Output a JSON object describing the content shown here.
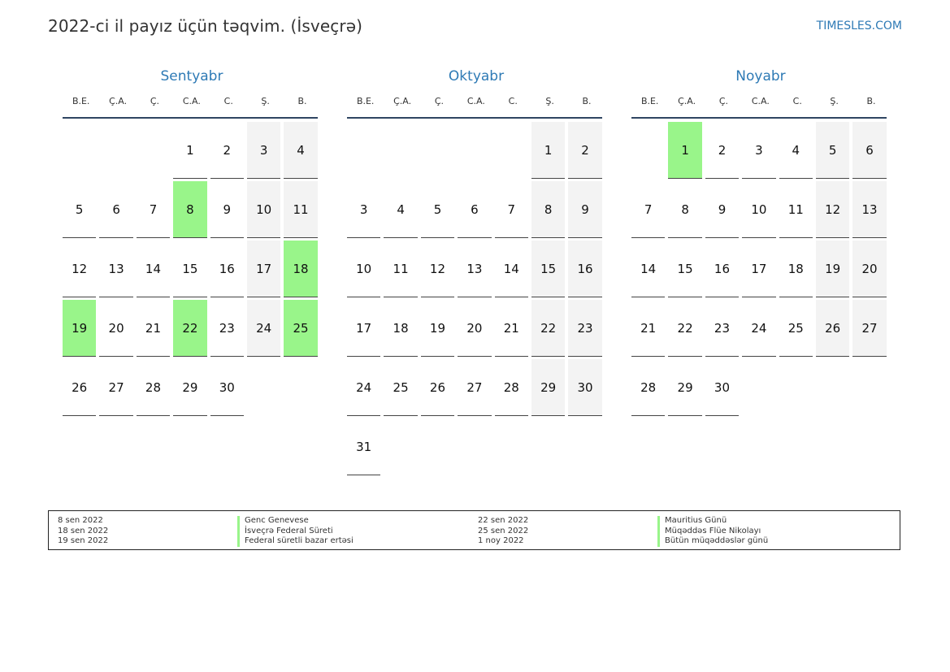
{
  "header": {
    "title": "2022-ci il payız üçün təqvim. (İsveçrə)",
    "brand": "TIMESLES.COM"
  },
  "weekday_headers": [
    "B.E.",
    "Ç.A.",
    "Ç.",
    "C.A.",
    "C.",
    "Ş.",
    "B."
  ],
  "months": [
    {
      "name": "Sentyabr",
      "weeks": [
        [
          "",
          "",
          "",
          "1",
          "2",
          "3",
          "4"
        ],
        [
          "5",
          "6",
          "7",
          "8",
          "9",
          "10",
          "11"
        ],
        [
          "12",
          "13",
          "14",
          "15",
          "16",
          "17",
          "18"
        ],
        [
          "19",
          "20",
          "21",
          "22",
          "23",
          "24",
          "25"
        ],
        [
          "26",
          "27",
          "28",
          "29",
          "30",
          "",
          ""
        ]
      ],
      "holidays": [
        "8",
        "18",
        "19",
        "22",
        "25"
      ]
    },
    {
      "name": "Oktyabr",
      "weeks": [
        [
          "",
          "",
          "",
          "",
          "",
          "1",
          "2"
        ],
        [
          "3",
          "4",
          "5",
          "6",
          "7",
          "8",
          "9"
        ],
        [
          "10",
          "11",
          "12",
          "13",
          "14",
          "15",
          "16"
        ],
        [
          "17",
          "18",
          "19",
          "20",
          "21",
          "22",
          "23"
        ],
        [
          "24",
          "25",
          "26",
          "27",
          "28",
          "29",
          "30"
        ],
        [
          "31",
          "",
          "",
          "",
          "",
          "",
          ""
        ]
      ],
      "holidays": []
    },
    {
      "name": "Noyabr",
      "weeks": [
        [
          "",
          "1",
          "2",
          "3",
          "4",
          "5",
          "6"
        ],
        [
          "7",
          "8",
          "9",
          "10",
          "11",
          "12",
          "13"
        ],
        [
          "14",
          "15",
          "16",
          "17",
          "18",
          "19",
          "20"
        ],
        [
          "21",
          "22",
          "23",
          "24",
          "25",
          "26",
          "27"
        ],
        [
          "28",
          "29",
          "30",
          "",
          "",
          "",
          ""
        ]
      ],
      "holidays": [
        "1"
      ]
    }
  ],
  "legend": {
    "left": [
      {
        "date": "8 sen 2022",
        "name": "Genc Genevese"
      },
      {
        "date": "18 sen 2022",
        "name": "İsveçrə Federal Süreti"
      },
      {
        "date": "19 sen 2022",
        "name": "Federal süretli bazar ertəsi"
      }
    ],
    "right": [
      {
        "date": "22 sen 2022",
        "name": "Mauritius Günü"
      },
      {
        "date": "25 sen 2022",
        "name": "Müqəddəs Flüe Nikolayı"
      },
      {
        "date": "1 noy 2022",
        "name": "Bütün müqəddəslər günü"
      }
    ]
  },
  "colors": {
    "accent": "#2e7ab5",
    "holiday": "#99f58a",
    "weekend": "#f3f3f3",
    "rule": "#2f4562"
  }
}
